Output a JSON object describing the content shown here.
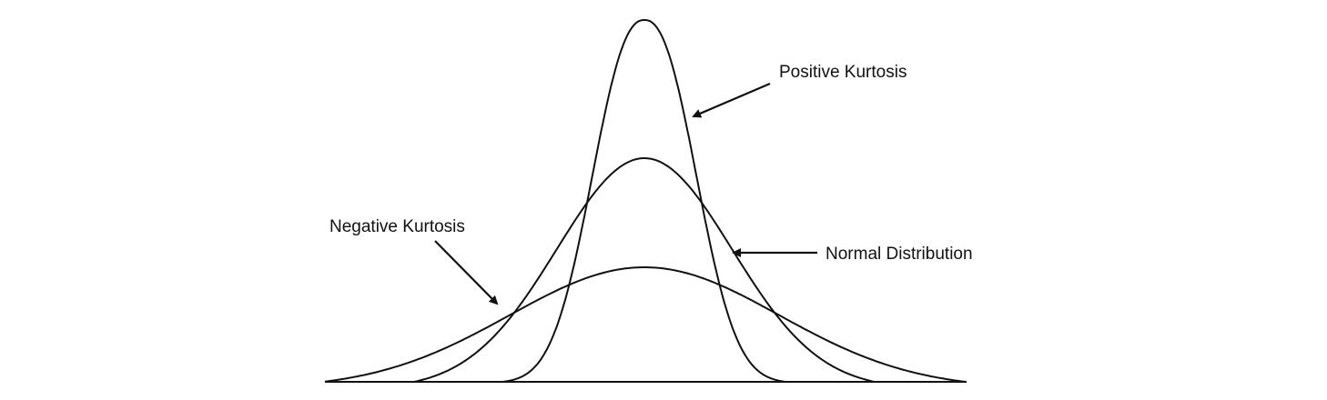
{
  "labels": {
    "positive": "Positive Kurtosis",
    "normal": "Normal Distribution",
    "negative": "Negative Kurtosis"
  },
  "colors": {
    "line": "#111111",
    "background": "#ffffff"
  }
}
